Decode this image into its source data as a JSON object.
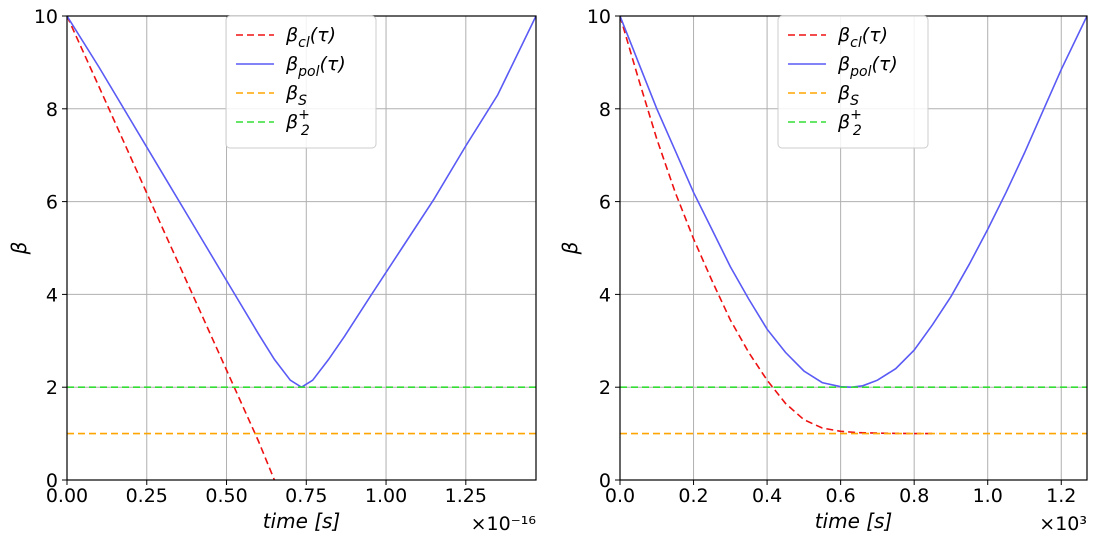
{
  "chart_data": [
    {
      "type": "line",
      "panel": "left",
      "xlabel": "time [s]",
      "ylabel": "β",
      "x_offset_label": "×10⁻¹⁶",
      "xlim": [
        0,
        1.47
      ],
      "ylim": [
        0,
        10
      ],
      "xticks": [
        0,
        0.25,
        0.5,
        0.75,
        1.0,
        1.25
      ],
      "xtick_labels": [
        "0.00",
        "0.25",
        "0.50",
        "0.75",
        "1.00",
        "1.25"
      ],
      "yticks": [
        0,
        2,
        4,
        6,
        8,
        10
      ],
      "ytick_labels": [
        "0",
        "2",
        "4",
        "6",
        "8",
        "10"
      ],
      "grid": true,
      "legend_position": "top-center",
      "series": [
        {
          "name": "β_cl(τ)",
          "color": "#ee1111",
          "style": "dashed",
          "x": [
            0,
            0.1,
            0.2,
            0.3,
            0.4,
            0.5,
            0.6,
            0.65
          ],
          "y": [
            10,
            8.48,
            6.95,
            5.42,
            3.9,
            2.37,
            0.84,
            0.0
          ]
        },
        {
          "name": "β_pol(τ)",
          "color": "#5a5af5",
          "style": "solid",
          "x": [
            0,
            0.1,
            0.2,
            0.3,
            0.4,
            0.5,
            0.6,
            0.65,
            0.7,
            0.735,
            0.77,
            0.82,
            0.87,
            0.95,
            1.05,
            1.15,
            1.25,
            1.35,
            1.47
          ],
          "y": [
            10,
            8.9,
            7.75,
            6.6,
            5.45,
            4.3,
            3.15,
            2.6,
            2.15,
            2.0,
            2.15,
            2.6,
            3.1,
            3.95,
            5.0,
            6.05,
            7.2,
            8.3,
            10.0
          ]
        },
        {
          "name": "β_S",
          "color": "#ffa500",
          "style": "dashed",
          "x": [
            0,
            1.47
          ],
          "y": [
            1,
            1
          ]
        },
        {
          "name": "β_2^+",
          "color": "#33dd33",
          "style": "dashed",
          "x": [
            0,
            1.47
          ],
          "y": [
            2,
            2
          ]
        }
      ]
    },
    {
      "type": "line",
      "panel": "right",
      "xlabel": "time [s]",
      "ylabel": "β",
      "x_offset_label": "×10³",
      "xlim": [
        0,
        1.27
      ],
      "ylim": [
        0,
        10
      ],
      "xticks": [
        0,
        0.2,
        0.4,
        0.6,
        0.8,
        1.0,
        1.2
      ],
      "xtick_labels": [
        "0.0",
        "0.2",
        "0.4",
        "0.6",
        "0.8",
        "1.0",
        "1.2"
      ],
      "yticks": [
        0,
        2,
        4,
        6,
        8,
        10
      ],
      "ytick_labels": [
        "0",
        "2",
        "4",
        "6",
        "8",
        "10"
      ],
      "grid": true,
      "legend_position": "top-center",
      "series": [
        {
          "name": "β_cl(τ)",
          "color": "#ee1111",
          "style": "dashed",
          "x": [
            0,
            0.05,
            0.1,
            0.15,
            0.2,
            0.25,
            0.3,
            0.35,
            0.4,
            0.45,
            0.5,
            0.55,
            0.6,
            0.65,
            0.7,
            0.75,
            0.8,
            0.86
          ],
          "y": [
            10,
            8.65,
            7.35,
            6.2,
            5.2,
            4.3,
            3.45,
            2.75,
            2.15,
            1.65,
            1.3,
            1.12,
            1.05,
            1.02,
            1.01,
            1.005,
            1.0,
            1.0
          ]
        },
        {
          "name": "β_pol(τ)",
          "color": "#5a5af5",
          "style": "solid",
          "x": [
            0,
            0.05,
            0.1,
            0.15,
            0.2,
            0.25,
            0.3,
            0.35,
            0.4,
            0.45,
            0.5,
            0.55,
            0.6,
            0.63,
            0.66,
            0.7,
            0.75,
            0.8,
            0.85,
            0.9,
            0.95,
            1.0,
            1.05,
            1.1,
            1.15,
            1.2,
            1.27
          ],
          "y": [
            10,
            9.0,
            8.0,
            7.1,
            6.2,
            5.4,
            4.6,
            3.9,
            3.25,
            2.75,
            2.35,
            2.1,
            2.01,
            2.0,
            2.03,
            2.15,
            2.4,
            2.8,
            3.35,
            3.95,
            4.65,
            5.4,
            6.2,
            7.05,
            7.95,
            8.85,
            10.0
          ]
        },
        {
          "name": "β_S",
          "color": "#ffa500",
          "style": "dashed",
          "x": [
            0,
            1.27
          ],
          "y": [
            1,
            1
          ]
        },
        {
          "name": "β_2^+",
          "color": "#33dd33",
          "style": "dashed",
          "x": [
            0,
            1.27
          ],
          "y": [
            2,
            2
          ]
        }
      ]
    }
  ]
}
